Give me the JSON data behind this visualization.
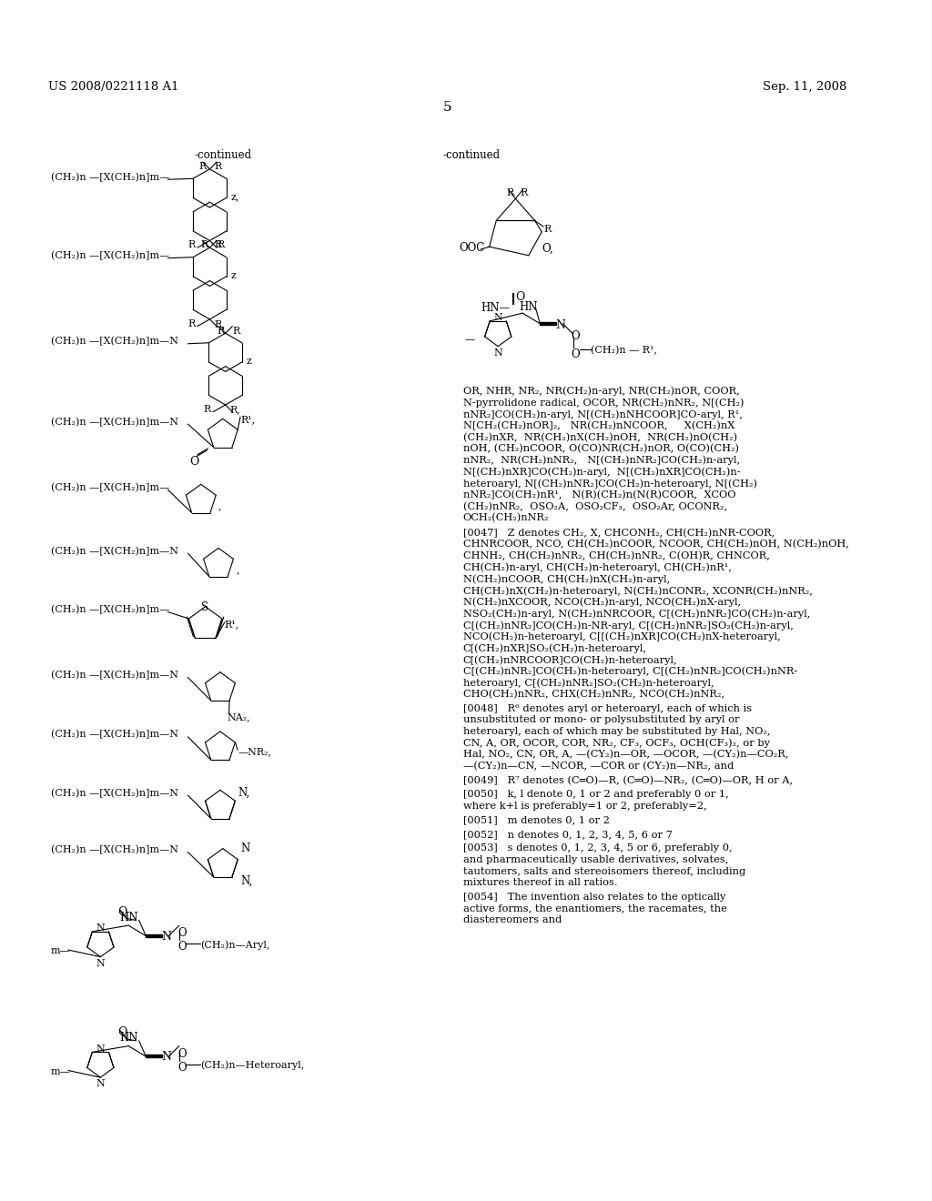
{
  "header_left": "US 2008/0221118 A1",
  "header_right": "Sep. 11, 2008",
  "page_num": "5",
  "bg": "#ffffff",
  "fg": "#000000",
  "left_continued": "-continued",
  "right_continued": "-continued",
  "right_text_lines": [
    "OR, NHR, NR₂, NR(CH₂)n-aryl, NR(CH₂)nOR, COOR,",
    "N-pyrrolidone radical, OCOR, NR(CH₂)nNR₂, N[(CH₂)",
    "nNR₂]CO(CH₂)n-aryl, N[(CH₂)nNHCOOR]CO-aryl, R¹,",
    "N[CH₂(CH₂)nOR]₂,   NR(CH₂)nNCOOR,     X(CH₂)nX",
    "(CH₂)nXR,  NR(CH₂)nX(CH₂)nOH,  NR(CH₂)nO(CH₂)",
    "nOH, (CH₂)nCOOR, O(CO)NR(CH₂)nOR, O(CO)(CH₂)",
    "nNR₂,  NR(CH₂)nNR₂,   N[(CH₂)nNR₂]CO(CH₂)n-aryl,",
    "N[(CH₂)nXR]CO(CH₂)n-aryl,  N[(CH₂)nXR]CO(CH₂)n-",
    "heteroaryl, N[(CH₂)nNR₂]CO(CH₂)n-heteroaryl, N[(CH₂)",
    "nNR₂]CO(CH₂)nR¹,   N(R)(CH₂)n(N(R)COOR,  XCOO",
    "(CH₂)nNR₂,  OSO₂A,  OSO₂CF₃,  OSO₂Ar, OCONR₂,",
    "OCH₂(CH₂)nNR₂"
  ],
  "para_0047": "[0047]   Z denotes CH₂, X, CHCONH₂, CH(CH₂)nNR-COOR, CHNRCOOR, NCO, CH(CH₂)nCOOR, NCOOR, CH(CH₂)nOH, N(CH₂)nOH, CHNH₂, CH(CH₂)nNR₂, CH(CH₂)nNR₂, C(OH)R, CHNCOR, CH(CH₂)n-aryl, CH(CH₂)n-heteroaryl, CH(CH₂)nR¹, N(CH₂)nCOOR, CH(CH₂)nX(CH₂)n-aryl, CH(CH₂)nX(CH₂)n-heteroaryl, N(CH₂)nCONR₂, XCONR(CH₂)nNR₂, N(CH₂)nXCOOR, NCO(CH₂)n-aryl, NCO(CH₂)nX-aryl, NSO₂(CH₂)n-aryl, N(CH₂)nNRCOOR, C[(CH₂)nNR₂]CO(CH₂)n-aryl, C[(CH₂)nNR₂]CO(CH₂)n-NR-aryl, C[(CH₂)nNR₂]SO₂(CH₂)n-aryl, NCO(CH₂)n-heteroaryl, C[[(CH₂)nXR]CO(CH₂)nX-heteroaryl, C[(CH₂)nXR]SO₂(CH₂)n-heteroaryl, C[(CH₂)nNRCOOR]CO(CH₂)n-heteroaryl, C[(CH₂)nNR₂]CO(CH₂)n-heteroaryl, C[(CH₂)nNR₂]CO(CH₂)nNR-heteroaryl, C[(CH₂)nNR₂]SO₂(CH₂)n-heteroaryl, CHO(CH₂)nNR₂, CHX(CH₂)nNR₂, NCO(CH₂)nNR₂,",
  "para_0048": "[0048]   R⁶ denotes aryl or heteroaryl, each of which is unsubstituted or mono- or polysubstituted by aryl or heteroaryl, each of which may be substituted by Hal, NO₂, CN, A, OR, OCOR, COR, NR₂, CF₃, OCF₃, OCH(CF₃)₂, or by Hal, NO₂, CN, OR, A, —(CY₂)n—OR, —OCOR, —(CY₂)n—CO₂R, —(CY₂)n—CN, —NCOR, —COR or (CY₂)n—NR₂, and",
  "para_0049": "[0049]   R⁷ denotes (C═O)—R, (C═O)—NR₂, (C═O)—OR, H or A,",
  "para_0050": "[0050]   k, l denote 0, 1 or 2 and preferably 0 or 1, where k+l is preferably=1 or 2, preferably=2,",
  "para_0051": "[0051]   m denotes 0, 1 or 2",
  "para_0052": "[0052]   n denotes 0, 1, 2, 3, 4, 5, 6 or 7",
  "para_0053": "[0053]   s denotes 0, 1, 2, 3, 4, 5 or 6, preferably 0, and pharmaceutically usable derivatives, solvates, tautomers, salts and stereoisomers thereof, including mixtures thereof in all ratios.",
  "para_0054": "[0054]   The invention also relates to the optically active forms, the enantiomers, the racemates, the diastereomers and"
}
